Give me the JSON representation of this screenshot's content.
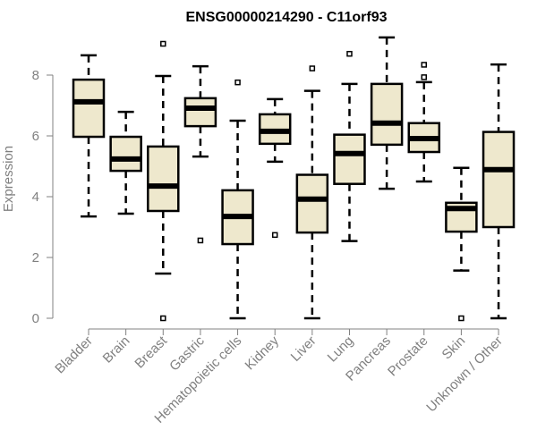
{
  "chart_data": {
    "type": "boxplot",
    "title": "ENSG00000214290 - C11orf93",
    "xlabel": "",
    "ylabel": "Expression",
    "ylim": [
      0,
      8.8
    ],
    "yticks": [
      0,
      2,
      4,
      6,
      8
    ],
    "grid": false,
    "box_color": "#EEE8CD",
    "categories": [
      "Bladder",
      "Brain",
      "Breast",
      "Gastric",
      "Hematopoietic cells",
      "Kidney",
      "Liver",
      "Lung",
      "Pancreas",
      "Prostate",
      "Skin",
      "Unknown / Other"
    ],
    "boxes": [
      {
        "min": 3.35,
        "q1": 5.97,
        "median": 7.12,
        "q3": 7.85,
        "max": 8.65,
        "outliers": []
      },
      {
        "min": 3.44,
        "q1": 4.85,
        "median": 5.24,
        "q3": 5.97,
        "max": 6.79,
        "outliers": []
      },
      {
        "min": 1.47,
        "q1": 3.53,
        "median": 4.35,
        "q3": 5.65,
        "max": 7.97,
        "outliers": [
          9.03,
          0
        ]
      },
      {
        "min": 5.32,
        "q1": 6.32,
        "median": 6.91,
        "q3": 7.24,
        "max": 8.29,
        "outliers": [
          2.56
        ]
      },
      {
        "min": 0,
        "q1": 2.44,
        "median": 3.35,
        "q3": 4.21,
        "max": 6.5,
        "outliers": [
          7.76
        ]
      },
      {
        "min": 5.15,
        "q1": 5.74,
        "median": 6.15,
        "q3": 6.71,
        "max": 7.21,
        "outliers": [
          2.74
        ]
      },
      {
        "min": 0,
        "q1": 2.82,
        "median": 3.92,
        "q3": 4.72,
        "max": 7.48,
        "outliers": [
          8.22
        ]
      },
      {
        "min": 2.54,
        "q1": 4.42,
        "median": 5.42,
        "q3": 6.04,
        "max": 7.71,
        "outliers": [
          8.7
        ]
      },
      {
        "min": 4.26,
        "q1": 5.71,
        "median": 6.42,
        "q3": 7.71,
        "max": 9.24,
        "outliers": []
      },
      {
        "min": 4.5,
        "q1": 5.47,
        "median": 5.91,
        "q3": 6.42,
        "max": 7.77,
        "outliers": [
          8.34,
          7.93
        ]
      },
      {
        "min": 1.57,
        "q1": 2.85,
        "median": 3.61,
        "q3": 3.8,
        "max": 4.95,
        "outliers": [
          0
        ]
      },
      {
        "min": 0,
        "q1": 3.0,
        "median": 4.89,
        "q3": 6.13,
        "max": 8.35,
        "outliers": []
      }
    ]
  }
}
